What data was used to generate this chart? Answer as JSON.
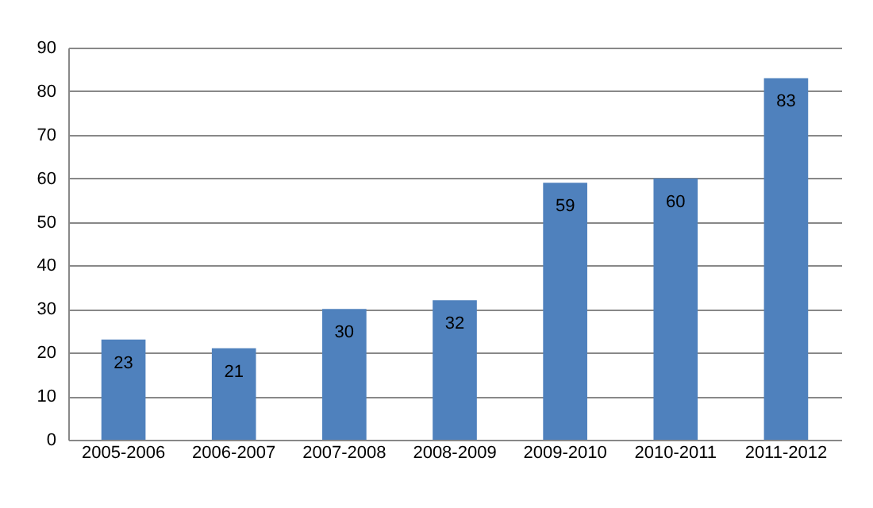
{
  "chart_data": {
    "type": "bar",
    "categories": [
      "2005-2006",
      "2006-2007",
      "2007-2008",
      "2008-2009",
      "2009-2010",
      "2010-2011",
      "2011-2012"
    ],
    "values": [
      23,
      21,
      30,
      32,
      59,
      60,
      83
    ],
    "color": "#4f81bd",
    "ylim": [
      0,
      90
    ],
    "yticks": [
      0,
      10,
      20,
      30,
      40,
      50,
      60,
      70,
      80,
      90
    ],
    "grid": "y",
    "data_labels": true
  }
}
